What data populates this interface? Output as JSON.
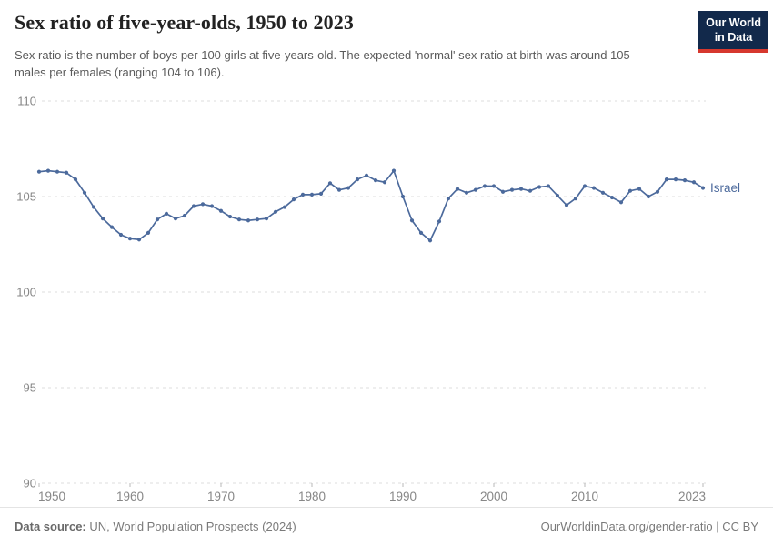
{
  "header": {
    "title": "Sex ratio of five-year-olds, 1950 to 2023",
    "subtitle": "Sex ratio is the number of boys per 100 girls at five-years-old. The expected 'normal' sex ratio at birth was around 105 males per females (ranging 104 to 106).",
    "logo": {
      "line1": "Our World",
      "line2": "in Data",
      "bg": "#12294b",
      "accent": "#d6382e"
    }
  },
  "chart_data": {
    "type": "line",
    "title": "Sex ratio of five-year-olds, 1950 to 2023",
    "xlabel": "",
    "ylabel": "",
    "xlim": [
      1950,
      2023
    ],
    "ylim": [
      90,
      110
    ],
    "grid": "horizontal-dashed",
    "legend_position": "end-of-line-label",
    "xticks": [
      1950,
      1960,
      1970,
      1980,
      1990,
      2000,
      2010,
      2023
    ],
    "yticks": [
      90,
      95,
      100,
      105,
      110
    ],
    "series": [
      {
        "name": "Israel",
        "color": "#4c6a9c",
        "x": [
          1950,
          1951,
          1952,
          1953,
          1954,
          1955,
          1956,
          1957,
          1958,
          1959,
          1960,
          1961,
          1962,
          1963,
          1964,
          1965,
          1966,
          1967,
          1968,
          1969,
          1970,
          1971,
          1972,
          1973,
          1974,
          1975,
          1976,
          1977,
          1978,
          1979,
          1980,
          1981,
          1982,
          1983,
          1984,
          1985,
          1986,
          1987,
          1988,
          1989,
          1990,
          1991,
          1992,
          1993,
          1994,
          1995,
          1996,
          1997,
          1998,
          1999,
          2000,
          2001,
          2002,
          2003,
          2004,
          2005,
          2006,
          2007,
          2008,
          2009,
          2010,
          2011,
          2012,
          2013,
          2014,
          2015,
          2016,
          2017,
          2018,
          2019,
          2020,
          2021,
          2022,
          2023
        ],
        "values": [
          106.3,
          106.35,
          106.3,
          106.25,
          105.9,
          105.2,
          104.45,
          103.85,
          103.4,
          103.0,
          102.8,
          102.75,
          103.1,
          103.8,
          104.1,
          103.85,
          104.0,
          104.5,
          104.6,
          104.5,
          104.25,
          103.95,
          103.8,
          103.75,
          103.8,
          103.85,
          104.2,
          104.45,
          104.85,
          105.1,
          105.1,
          105.15,
          105.7,
          105.35,
          105.45,
          105.9,
          106.1,
          105.85,
          105.75,
          106.35,
          105.0,
          103.75,
          103.1,
          102.7,
          103.7,
          104.9,
          105.4,
          105.2,
          105.35,
          105.55,
          105.55,
          105.25,
          105.35,
          105.4,
          105.3,
          105.5,
          105.55,
          105.05,
          104.55,
          104.9,
          105.55,
          105.45,
          105.2,
          104.95,
          104.7,
          105.3,
          105.4,
          105.0,
          105.25,
          105.9,
          105.9,
          105.85,
          105.75,
          105.45
        ]
      }
    ],
    "colors": {
      "gridline": "#dcdcdc",
      "axis_label": "#878787",
      "tick_mark": "#b8b8b8"
    }
  },
  "footer": {
    "source_label": "Data source:",
    "source_text": " UN, World Population Prospects (2024)",
    "attribution": "OurWorldinData.org/gender-ratio | CC BY"
  }
}
